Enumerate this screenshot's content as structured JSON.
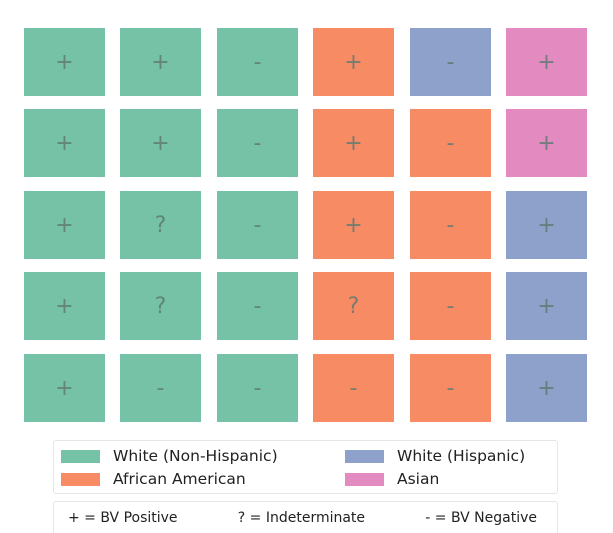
{
  "chart_data": {
    "type": "heatmap",
    "title": "",
    "colors": {
      "White (Non-Hispanic)": "#76c2a6",
      "African American": "#f78b64",
      "White (Hispanic)": "#8da1cb",
      "Asian": "#e38ac0"
    },
    "rows": [
      [
        {
          "group": "White (Non-Hispanic)",
          "result": "+"
        },
        {
          "group": "White (Non-Hispanic)",
          "result": "+"
        },
        {
          "group": "White (Non-Hispanic)",
          "result": "-"
        },
        {
          "group": "African American",
          "result": "+"
        },
        {
          "group": "White (Hispanic)",
          "result": "-"
        },
        {
          "group": "Asian",
          "result": "+"
        }
      ],
      [
        {
          "group": "White (Non-Hispanic)",
          "result": "+"
        },
        {
          "group": "White (Non-Hispanic)",
          "result": "+"
        },
        {
          "group": "White (Non-Hispanic)",
          "result": "-"
        },
        {
          "group": "African American",
          "result": "+"
        },
        {
          "group": "African American",
          "result": "-"
        },
        {
          "group": "Asian",
          "result": "+"
        }
      ],
      [
        {
          "group": "White (Non-Hispanic)",
          "result": "+"
        },
        {
          "group": "White (Non-Hispanic)",
          "result": "?"
        },
        {
          "group": "White (Non-Hispanic)",
          "result": "-"
        },
        {
          "group": "African American",
          "result": "+"
        },
        {
          "group": "African American",
          "result": "-"
        },
        {
          "group": "White (Hispanic)",
          "result": "+"
        }
      ],
      [
        {
          "group": "White (Non-Hispanic)",
          "result": "+"
        },
        {
          "group": "White (Non-Hispanic)",
          "result": "?"
        },
        {
          "group": "White (Non-Hispanic)",
          "result": "-"
        },
        {
          "group": "African American",
          "result": "?"
        },
        {
          "group": "African American",
          "result": "-"
        },
        {
          "group": "White (Hispanic)",
          "result": "+"
        }
      ],
      [
        {
          "group": "White (Non-Hispanic)",
          "result": "+"
        },
        {
          "group": "White (Non-Hispanic)",
          "result": "-"
        },
        {
          "group": "White (Non-Hispanic)",
          "result": "-"
        },
        {
          "group": "African American",
          "result": "-"
        },
        {
          "group": "African American",
          "result": "-"
        },
        {
          "group": "White (Hispanic)",
          "result": "+"
        }
      ]
    ],
    "legend": {
      "entries": [
        "White (Non-Hispanic)",
        "White (Hispanic)",
        "African American",
        "Asian"
      ],
      "placement": "bottom"
    },
    "key": [
      "+ = BV Positive",
      "? = Indeterminate",
      "- = BV Negative"
    ]
  }
}
